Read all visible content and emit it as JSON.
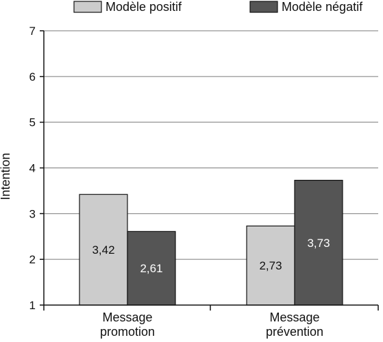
{
  "chart_data": {
    "type": "bar",
    "categories": [
      [
        "Message",
        "promotion"
      ],
      [
        "Message",
        "prévention"
      ]
    ],
    "series": [
      {
        "name": "Modèle positif",
        "values": [
          3.42,
          2.73
        ],
        "labels": [
          "3,42",
          "2,73"
        ],
        "color": "#cccccc"
      },
      {
        "name": "Modèle négatif",
        "values": [
          2.61,
          3.73
        ],
        "labels": [
          "2,61",
          "3,73"
        ],
        "color": "#555555"
      }
    ],
    "ylabel": "Intention",
    "xlabel": "",
    "title": "",
    "ylim": [
      1,
      7
    ],
    "yticks": [
      "1",
      "2",
      "3",
      "4",
      "5",
      "6",
      "7"
    ],
    "grid": true,
    "legend_position": "top"
  }
}
